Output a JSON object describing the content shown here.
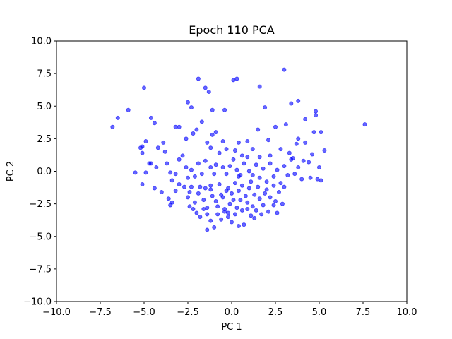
{
  "chart_data": {
    "type": "scatter",
    "title": "Epoch 110 PCA",
    "xlabel": "PC 1",
    "ylabel": "PC 2",
    "xlim": [
      -10,
      10
    ],
    "ylim": [
      -10,
      10
    ],
    "xticks": [
      "−10.0",
      "−7.5",
      "−5.0",
      "−2.5",
      "0.0",
      "2.5",
      "5.0",
      "7.5",
      "10.0"
    ],
    "yticks": [
      "−10.0",
      "−7.5",
      "−5.0",
      "−2.5",
      "0.0",
      "2.5",
      "5.0",
      "7.5",
      "10.0"
    ],
    "grid": false,
    "color": "#0000ff",
    "series": [
      {
        "points": [
          [
            -6.8,
            3.4
          ],
          [
            -6.5,
            4.1
          ],
          [
            -5.9,
            4.7
          ],
          [
            -5.0,
            6.4
          ],
          [
            -4.6,
            4.1
          ],
          [
            -4.4,
            3.7
          ],
          [
            -3.2,
            3.4
          ],
          [
            -3.0,
            3.4
          ],
          [
            -2.5,
            5.3
          ],
          [
            -2.3,
            4.9
          ],
          [
            -1.9,
            7.1
          ],
          [
            -1.5,
            6.4
          ],
          [
            -1.3,
            6.1
          ],
          [
            -1.1,
            4.7
          ],
          [
            -0.4,
            4.7
          ],
          [
            0.1,
            7.0
          ],
          [
            0.3,
            7.1
          ],
          [
            1.6,
            6.5
          ],
          [
            1.9,
            4.9
          ],
          [
            3.0,
            7.8
          ],
          [
            3.4,
            5.2
          ],
          [
            3.8,
            5.4
          ],
          [
            4.2,
            4.0
          ],
          [
            4.8,
            4.6
          ],
          [
            4.8,
            4.3
          ],
          [
            4.7,
            3.0
          ],
          [
            5.1,
            3.0
          ],
          [
            7.6,
            3.6
          ],
          [
            5.3,
            1.6
          ],
          [
            -5.2,
            1.8
          ],
          [
            -5.1,
            1.4
          ],
          [
            -4.9,
            2.3
          ],
          [
            -4.2,
            1.8
          ],
          [
            -3.8,
            1.5
          ],
          [
            -3.9,
            2.2
          ],
          [
            -2.6,
            2.5
          ],
          [
            -2.2,
            2.9
          ],
          [
            -2.0,
            3.2
          ],
          [
            -1.7,
            3.8
          ],
          [
            -1.4,
            2.2
          ],
          [
            -1.2,
            1.8
          ],
          [
            -0.9,
            3.0
          ],
          [
            -0.5,
            2.3
          ],
          [
            -0.3,
            1.7
          ],
          [
            0.2,
            1.6
          ],
          [
            0.4,
            2.2
          ],
          [
            0.6,
            1.2
          ],
          [
            1.2,
            1.7
          ],
          [
            1.5,
            3.2
          ],
          [
            1.6,
            1.1
          ],
          [
            2.2,
            1.2
          ],
          [
            2.5,
            3.4
          ],
          [
            3.1,
            3.6
          ],
          [
            3.3,
            1.4
          ],
          [
            3.5,
            1.0
          ],
          [
            3.8,
            2.5
          ],
          [
            4.2,
            2.2
          ],
          [
            4.4,
            0.7
          ],
          [
            5.0,
            0.3
          ],
          [
            4.1,
            0.8
          ],
          [
            -5.5,
            -0.1
          ],
          [
            -5.1,
            -1.0
          ],
          [
            -4.9,
            -0.1
          ],
          [
            -4.6,
            0.6
          ],
          [
            -4.3,
            0.3
          ],
          [
            -3.7,
            0.6
          ],
          [
            -3.5,
            -0.1
          ],
          [
            -3.4,
            -0.7
          ],
          [
            -3.2,
            -0.2
          ],
          [
            -3.0,
            0.9
          ],
          [
            -2.6,
            0.3
          ],
          [
            -2.5,
            -0.5
          ],
          [
            -2.3,
            0.1
          ],
          [
            -2.1,
            -0.4
          ],
          [
            -1.9,
            0.6
          ],
          [
            -1.7,
            -0.2
          ],
          [
            -1.5,
            0.8
          ],
          [
            -1.2,
            0.3
          ],
          [
            -1.0,
            -0.2
          ],
          [
            -0.9,
            0.5
          ],
          [
            -0.7,
            1.4
          ],
          [
            -0.5,
            0.3
          ],
          [
            -0.3,
            -0.2
          ],
          [
            -0.1,
            0.4
          ],
          [
            0.1,
            0.9
          ],
          [
            0.3,
            0.1
          ],
          [
            0.5,
            -0.3
          ],
          [
            0.7,
            0.6
          ],
          [
            0.9,
            1.1
          ],
          [
            1.0,
            0.0
          ],
          [
            1.2,
            -0.3
          ],
          [
            1.4,
            0.5
          ],
          [
            1.6,
            -0.5
          ],
          [
            1.8,
            0.2
          ],
          [
            2.0,
            -0.8
          ],
          [
            2.2,
            0.6
          ],
          [
            2.4,
            -0.4
          ],
          [
            2.6,
            0.1
          ],
          [
            2.8,
            -0.9
          ],
          [
            3.0,
            0.4
          ],
          [
            3.2,
            -0.3
          ],
          [
            3.4,
            0.9
          ],
          [
            3.6,
            -0.2
          ],
          [
            3.8,
            0.3
          ],
          [
            4.0,
            -0.6
          ],
          [
            4.5,
            -0.5
          ],
          [
            4.9,
            -0.6
          ],
          [
            5.1,
            -0.7
          ],
          [
            -4.4,
            -1.3
          ],
          [
            -4.0,
            -1.6
          ],
          [
            -3.6,
            -2.1
          ],
          [
            -3.5,
            -2.6
          ],
          [
            -3.4,
            -2.4
          ],
          [
            -3.2,
            -1.5
          ],
          [
            -2.7,
            -1.2
          ],
          [
            -2.5,
            -2.0
          ],
          [
            -2.4,
            -1.6
          ],
          [
            -2.3,
            -1.2
          ],
          [
            -2.1,
            -2.4
          ],
          [
            -1.9,
            -1.7
          ],
          [
            -1.8,
            -1.2
          ],
          [
            -1.6,
            -2.2
          ],
          [
            -1.4,
            -2.8
          ],
          [
            -1.2,
            -1.4
          ],
          [
            -1.1,
            -1.9
          ],
          [
            -0.9,
            -2.3
          ],
          [
            -0.8,
            -2.7
          ],
          [
            -0.6,
            -1.8
          ],
          [
            -0.5,
            -2.0
          ],
          [
            -0.4,
            -2.9
          ],
          [
            -0.3,
            -1.5
          ],
          [
            -0.1,
            -2.5
          ],
          [
            0.0,
            -1.7
          ],
          [
            0.1,
            -2.2
          ],
          [
            0.3,
            -2.8
          ],
          [
            0.4,
            -1.5
          ],
          [
            0.5,
            -2.2
          ],
          [
            0.6,
            -1.1
          ],
          [
            0.8,
            -1.9
          ],
          [
            0.9,
            -2.4
          ],
          [
            1.0,
            -1.3
          ],
          [
            1.2,
            -2.7
          ],
          [
            1.3,
            -1.8
          ],
          [
            1.5,
            -1.2
          ],
          [
            1.6,
            -2.1
          ],
          [
            1.8,
            -2.6
          ],
          [
            2.0,
            -1.4
          ],
          [
            2.2,
            -2.0
          ],
          [
            2.4,
            -1.1
          ],
          [
            2.5,
            -2.3
          ],
          [
            2.7,
            -1.6
          ],
          [
            3.0,
            -1.2
          ],
          [
            -2.4,
            -2.7
          ],
          [
            -2.2,
            -2.9
          ],
          [
            -2.0,
            -3.2
          ],
          [
            -1.8,
            -3.5
          ],
          [
            -1.6,
            -2.9
          ],
          [
            -1.4,
            -3.3
          ],
          [
            -1.2,
            -3.8
          ],
          [
            -1.0,
            -4.3
          ],
          [
            -0.8,
            -3.3
          ],
          [
            -0.6,
            -3.7
          ],
          [
            -0.4,
            -3.1
          ],
          [
            -0.2,
            -3.5
          ],
          [
            0.0,
            -3.9
          ],
          [
            0.2,
            -3.3
          ],
          [
            0.4,
            -4.2
          ],
          [
            0.7,
            -4.1
          ],
          [
            0.6,
            -3.0
          ],
          [
            0.9,
            -2.9
          ],
          [
            1.1,
            -3.4
          ],
          [
            1.4,
            -3.0
          ],
          [
            1.7,
            -3.3
          ],
          [
            2.1,
            -3.1
          ],
          [
            2.4,
            -2.6
          ],
          [
            2.6,
            -3.2
          ],
          [
            -1.2,
            -1.1
          ],
          [
            -0.7,
            -1.0
          ],
          [
            0.2,
            -0.9
          ],
          [
            1.1,
            -0.8
          ],
          [
            -3.0,
            -1.0
          ],
          [
            2.9,
            -2.5
          ],
          [
            -0.2,
            -1.3
          ],
          [
            1.9,
            -1.7
          ],
          [
            -1.5,
            -1.3
          ],
          [
            0.4,
            -0.4
          ],
          [
            -4.7,
            0.6
          ],
          [
            -5.1,
            1.9
          ],
          [
            -1.1,
            2.8
          ],
          [
            2.1,
            2.4
          ],
          [
            3.7,
            2.1
          ],
          [
            4.6,
            1.3
          ],
          [
            -2.8,
            1.2
          ],
          [
            0.9,
            2.3
          ],
          [
            2.8,
            1.7
          ],
          [
            -0.2,
            -3.2
          ],
          [
            1.3,
            -3.6
          ],
          [
            -1.4,
            -4.5
          ]
        ]
      }
    ]
  }
}
